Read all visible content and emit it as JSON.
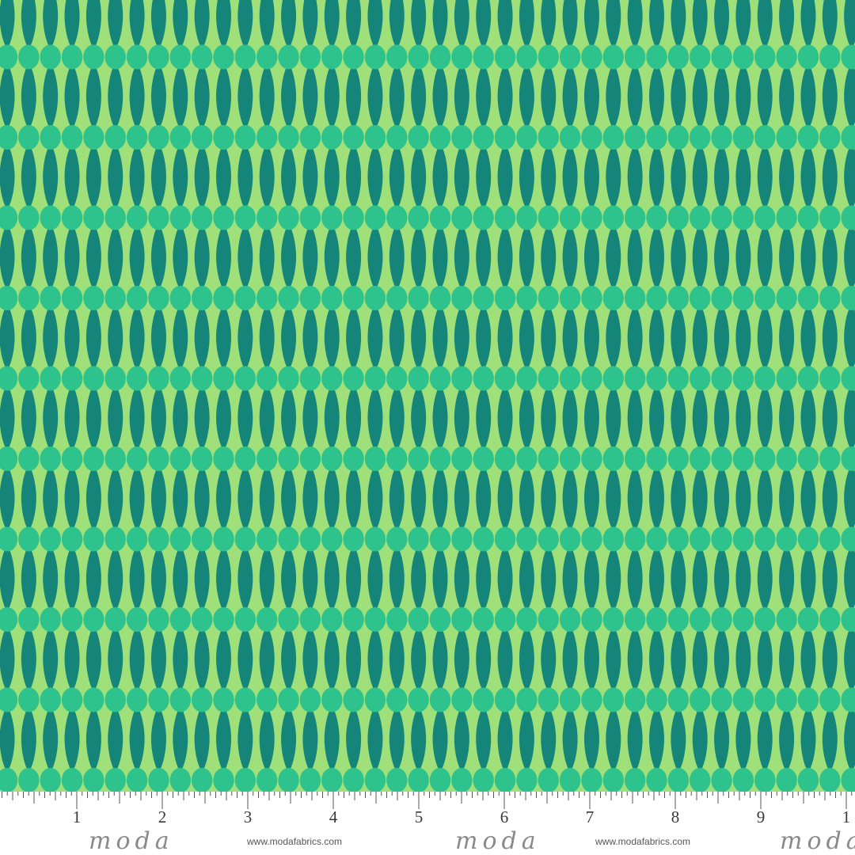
{
  "colors": {
    "background": "#9fe07a",
    "dark_drop": "#15857a",
    "light_oval": "#2ec28c",
    "ruler_bg": "#ffffff",
    "ruler_ink": "#555555"
  },
  "ruler": {
    "numbers": [
      "1",
      "2",
      "3",
      "4",
      "5",
      "6",
      "7",
      "8",
      "9",
      "1"
    ],
    "brand": "moda",
    "website": "www.modafabrics.com"
  }
}
